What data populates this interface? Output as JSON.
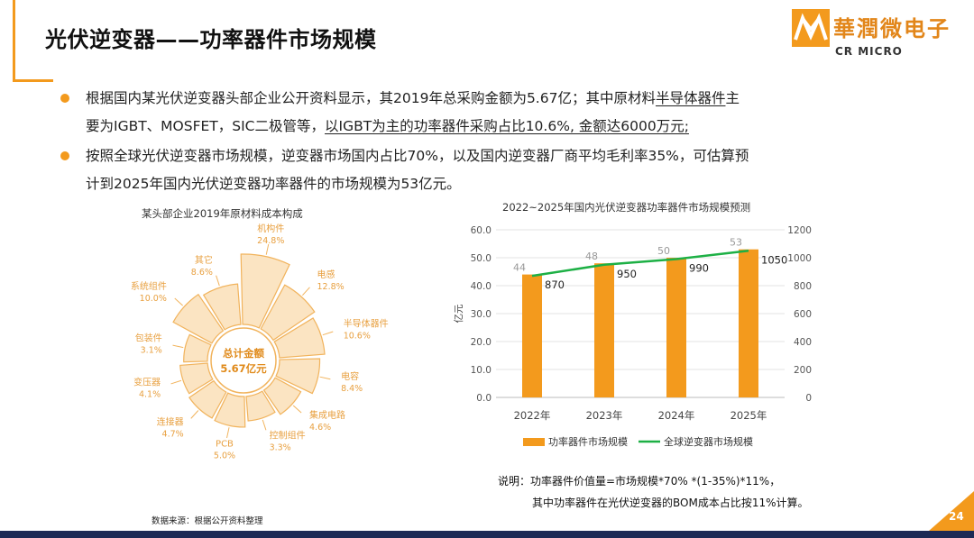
{
  "slide": {
    "title": "光伏逆变器——功率器件市场规模",
    "logo_name": "華潤微电子",
    "logo_sub": "CR MICRO",
    "page_number": "24",
    "accent_color": "#f39a1d",
    "icons": [
      "bullet-dot",
      "cr-micro-logo"
    ]
  },
  "bullets": [
    {
      "line1_pre": "根据国内某光伏逆变器头部企业公开资料显示，其2019年总采购金额为5.67亿；其中原材料",
      "line1_u": "半导体器件",
      "line1_post": "主",
      "line2_pre": "要为IGBT、MOSFET，SIC二极管等，",
      "line2_u": "以IGBT为主的功率器件采购占比10.6%, 金额达6000万元;"
    },
    {
      "line1": "按照全球光伏逆变器市场规模，逆变器市场国内占比70%，以及国内逆变器厂商平均毛利率35%，可估算预",
      "line2": "计到2025年国内光伏逆变器功率器件的市场规模为53亿元。"
    }
  ],
  "source": "数据来源：根据公开资料整理",
  "note": {
    "line1": "说明：功率器件价值量=市场规模*70% *(1-35%)*11%，",
    "line2": "其中功率器件在光伏逆变器的BOM成本占比按11%计算。"
  },
  "chart_data": [
    {
      "type": "pie",
      "title": "某头部企业2019年原材料成本构成",
      "center_label": [
        "总计金额",
        "5.67亿元"
      ],
      "slices": [
        {
          "label": "机构件",
          "value": 24.8,
          "text": "24.8%"
        },
        {
          "label": "电感",
          "value": 12.8,
          "text": "12.8%"
        },
        {
          "label": "半导体器件",
          "value": 10.6,
          "text": "10.6%"
        },
        {
          "label": "电容",
          "value": 8.4,
          "text": "8.4%"
        },
        {
          "label": "集成电路",
          "value": 4.6,
          "text": "4.6%"
        },
        {
          "label": "控制组件",
          "value": 3.3,
          "text": "3.3%"
        },
        {
          "label": "PCB",
          "value": 5.0,
          "text": "5.0%"
        },
        {
          "label": "连接器",
          "value": 4.7,
          "text": "4.7%"
        },
        {
          "label": "变压器",
          "value": 4.1,
          "text": "4.1%"
        },
        {
          "label": "包装件",
          "value": 3.1,
          "text": "3.1%"
        },
        {
          "label": "系统组件",
          "value": 10.0,
          "text": "10.0%"
        },
        {
          "label": "其它",
          "value": 8.6,
          "text": "8.6%"
        }
      ],
      "colors": {
        "fill": "#fbe4c2",
        "stroke": "#f1b35c",
        "label": "#e8a040"
      }
    },
    {
      "type": "bar",
      "title": "2022~2025年国内光伏逆变器功率器件市场规模预测",
      "categories": [
        "2022年",
        "2023年",
        "2024年",
        "2025年"
      ],
      "series": [
        {
          "name": "功率器件市场规模",
          "type": "bar",
          "axis": "left",
          "values": [
            44,
            48,
            50,
            53
          ],
          "color": "#f39a1d"
        },
        {
          "name": "全球逆变器市场规模",
          "type": "line",
          "axis": "right",
          "values": [
            870,
            950,
            990,
            1050
          ],
          "color": "#1db045"
        }
      ],
      "ylabel": "亿元",
      "ylim": [
        0,
        60
      ],
      "yticks": [
        "0.0",
        "10.0",
        "20.0",
        "30.0",
        "40.0",
        "50.0",
        "60.0"
      ],
      "y2lim": [
        0,
        1200
      ],
      "y2ticks": [
        "0",
        "200",
        "400",
        "600",
        "800",
        "1000",
        "1200"
      ],
      "grid": true,
      "legend": "bottom"
    }
  ]
}
